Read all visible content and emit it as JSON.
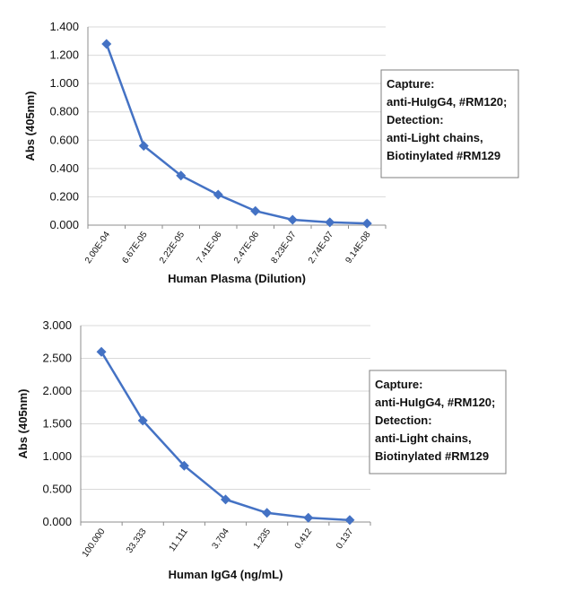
{
  "chart_data": [
    {
      "type": "line",
      "categories": [
        "2.00E-04",
        "6.67E-05",
        "2.22E-05",
        "7.41E-06",
        "2.47E-06",
        "8.23E-07",
        "2.74E-07",
        "9.14E-08"
      ],
      "series": [
        {
          "values": [
            1.28,
            0.56,
            0.35,
            0.215,
            0.1,
            0.038,
            0.02,
            0.012
          ]
        }
      ],
      "yticks": [
        "0.000",
        "0.200",
        "0.400",
        "0.600",
        "0.800",
        "1.000",
        "1.200",
        "1.400"
      ],
      "ylim": [
        0,
        1.4
      ],
      "xlabel": "Human Plasma (Dilution)",
      "ylabel": "Abs (405nm)",
      "legend": [
        "Capture:",
        "anti-HuIgG4, #RM120;",
        "Detection:",
        "anti-Light chains,",
        "Biotinylated #RM129"
      ],
      "legend_position": "right",
      "grid": true,
      "color": "#4472c4"
    },
    {
      "type": "line",
      "categories": [
        "100.000",
        "33.333",
        "11.111",
        "3.704",
        "1.235",
        "0.412",
        "0.137"
      ],
      "series": [
        {
          "values": [
            2.6,
            1.55,
            0.86,
            0.345,
            0.14,
            0.065,
            0.03
          ]
        }
      ],
      "yticks": [
        "0.000",
        "0.500",
        "1.000",
        "1.500",
        "2.000",
        "2.500",
        "3.000"
      ],
      "ylim": [
        0,
        3.0
      ],
      "xlabel": "Human IgG4 (ng/mL)",
      "ylabel": "Abs (405nm)",
      "legend": [
        "Capture:",
        "anti-HuIgG4, #RM120;",
        "Detection:",
        "anti-Light chains,",
        "Biotinylated #RM129"
      ],
      "legend_position": "right",
      "grid": true,
      "color": "#4472c4"
    }
  ]
}
